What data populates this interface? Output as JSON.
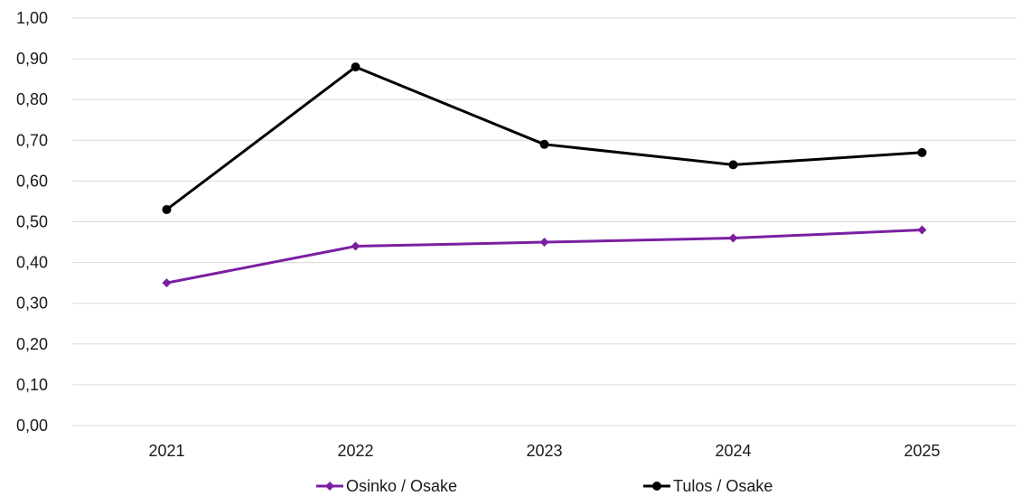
{
  "chart_data": {
    "type": "line",
    "title": "",
    "xlabel": "",
    "ylabel": "",
    "categories": [
      "2021",
      "2022",
      "2023",
      "2024",
      "2025"
    ],
    "ylim": [
      0,
      1
    ],
    "yticks": [
      "0,00",
      "0,10",
      "0,20",
      "0,30",
      "0,40",
      "0,50",
      "0,60",
      "0,70",
      "0,80",
      "0,90",
      "1,00"
    ],
    "grid": true,
    "legend_position": "bottom",
    "series": [
      {
        "name": "Osinko / Osake",
        "values": [
          0.35,
          0.44,
          0.45,
          0.46,
          0.48
        ],
        "color": "#7b1fa2",
        "marker": "diamond"
      },
      {
        "name": "Tulos / Osake",
        "values": [
          0.53,
          0.88,
          0.69,
          0.64,
          0.67
        ],
        "color": "#000000",
        "marker": "circle"
      }
    ]
  }
}
